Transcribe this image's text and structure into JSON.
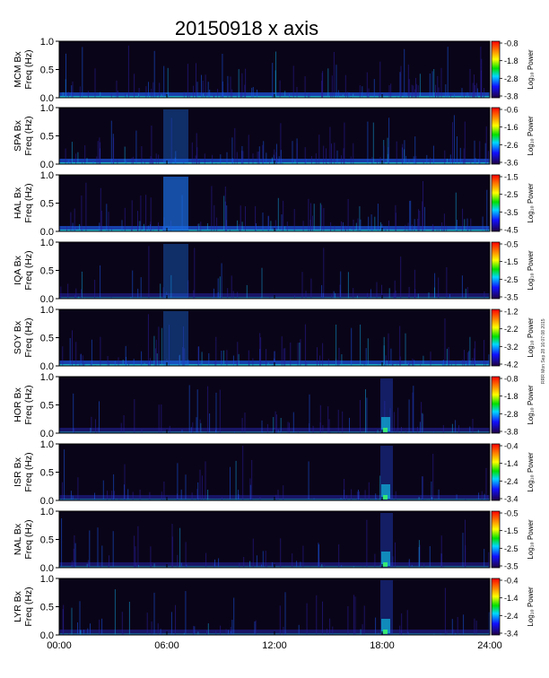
{
  "chart_data": {
    "type": "heatmap",
    "title": "20150918 x axis",
    "xlabel": "",
    "x_ticks": [
      "00:00",
      "06:00",
      "12:00",
      "18:00",
      "24:00"
    ],
    "x_range_hours": [
      0,
      24
    ],
    "y_ticks": [
      "0.0",
      "0.5",
      "1.0"
    ],
    "y_range_hz": [
      0,
      1
    ],
    "colorbar_label": "Log₁₀ Power",
    "side_note": "RRR Mon Sep 28 16:07:08 2015",
    "panels": [
      {
        "station": "MCM",
        "ylabel": "MCM Bx\nFreq (Hz)",
        "cbar_ticks": [
          "-0.8",
          "-1.8",
          "-2.8",
          "-3.8"
        ]
      },
      {
        "station": "SPA",
        "ylabel": "SPA Bx\nFreq (Hz)",
        "cbar_ticks": [
          "-0.6",
          "-1.6",
          "-2.6",
          "-3.6"
        ]
      },
      {
        "station": "HAL",
        "ylabel": "HAL Bx\nFreq (Hz)",
        "cbar_ticks": [
          "-1.5",
          "-2.5",
          "-3.5",
          "-4.5"
        ]
      },
      {
        "station": "IQA",
        "ylabel": "IQA Bx\nFreq (Hz)",
        "cbar_ticks": [
          "-0.5",
          "-1.5",
          "-2.5",
          "-3.5"
        ]
      },
      {
        "station": "SOY",
        "ylabel": "SOY Bx\nFreq (Hz)",
        "cbar_ticks": [
          "-1.2",
          "-2.2",
          "-3.2",
          "-4.2"
        ]
      },
      {
        "station": "HOR",
        "ylabel": "HOR Bx\nFreq (Hz)",
        "cbar_ticks": [
          "-0.8",
          "-1.8",
          "-2.8",
          "-3.8"
        ]
      },
      {
        "station": "ISR",
        "ylabel": "ISR Bx\nFreq (Hz)",
        "cbar_ticks": [
          "-0.4",
          "-1.4",
          "-2.4",
          "-3.4"
        ]
      },
      {
        "station": "NAL",
        "ylabel": "NAL Bx\nFreq (Hz)",
        "cbar_ticks": [
          "-0.5",
          "-1.5",
          "-2.5",
          "-3.5"
        ]
      },
      {
        "station": "LYR",
        "ylabel": "LYR Bx\nFreq (Hz)",
        "cbar_ticks": [
          "-0.4",
          "-1.4",
          "-2.4",
          "-3.4"
        ]
      }
    ]
  }
}
